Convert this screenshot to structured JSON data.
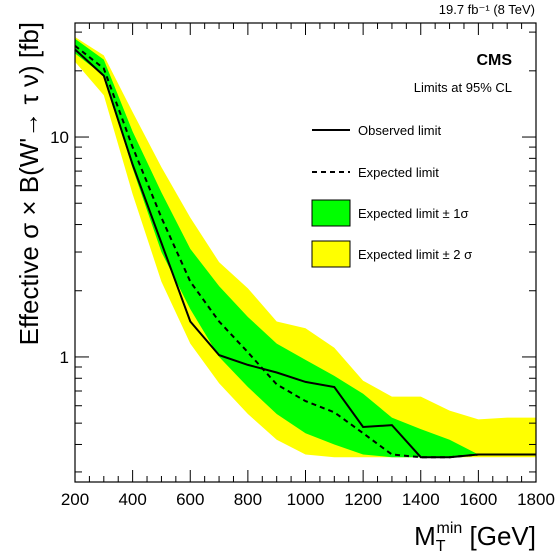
{
  "chart_data": {
    "type": "line",
    "lumi_label": "19.7 fb⁻¹ (8 TeV)",
    "experiment": "CMS",
    "cl_label": "Limits at 95% CL",
    "ylabel": "Effective σ × B(W'→ τ ν) [fb]",
    "xlabel_main": "M",
    "xlabel_sub": "T",
    "xlabel_sup": "min",
    "xlabel_unit": " [GeV]",
    "xlim": [
      200,
      1800
    ],
    "ylim": [
      0.27,
      33
    ],
    "yscale": "log",
    "x_ticks": [
      200,
      400,
      600,
      800,
      1000,
      1200,
      1400,
      1600,
      1800
    ],
    "x_tick_labels": [
      "200",
      "400",
      "600",
      "800",
      "1000",
      "1200",
      "1400",
      "1600",
      "1800"
    ],
    "y_ticks": [
      1,
      10
    ],
    "y_tick_labels": [
      "1",
      "10"
    ],
    "x": [
      200,
      300,
      400,
      500,
      600,
      700,
      800,
      900,
      1000,
      1100,
      1200,
      1300,
      1400,
      1500,
      1600,
      1700,
      1800
    ],
    "series": [
      {
        "name": "Observed limit",
        "style": "solid",
        "values": [
          25,
          19,
          7.5,
          3.3,
          1.45,
          1.02,
          0.92,
          0.85,
          0.77,
          0.73,
          0.48,
          0.49,
          0.35,
          0.35,
          0.36,
          0.36,
          0.36
        ]
      },
      {
        "name": "Expected limit",
        "style": "dashed",
        "values": [
          26,
          20.5,
          9.0,
          4.3,
          2.2,
          1.45,
          1.05,
          0.75,
          0.63,
          0.56,
          0.45,
          0.36,
          0.35,
          0.35,
          0.36,
          0.36,
          0.36
        ]
      },
      {
        "name": "Expected limit ± 1σ",
        "style": "band",
        "color": "#00ff00",
        "lower": [
          24,
          19,
          7.2,
          3.0,
          1.65,
          1.0,
          0.73,
          0.55,
          0.45,
          0.4,
          0.36,
          0.35,
          0.35,
          0.35,
          0.36,
          0.36,
          0.36
        ],
        "upper": [
          28,
          22.5,
          10.6,
          5.6,
          3.1,
          2.1,
          1.52,
          1.15,
          0.97,
          0.82,
          0.68,
          0.53,
          0.47,
          0.42,
          0.36,
          0.36,
          0.36
        ]
      },
      {
        "name": "Expected limit ± 2σ",
        "style": "band",
        "color": "#ffff00",
        "lower": [
          22,
          15.5,
          5.5,
          2.2,
          1.15,
          0.76,
          0.55,
          0.42,
          0.36,
          0.35,
          0.35,
          0.35,
          0.35,
          0.35,
          0.35,
          0.35,
          0.35
        ],
        "upper": [
          28.5,
          23.5,
          13.0,
          7.3,
          4.3,
          2.7,
          2.05,
          1.45,
          1.35,
          1.1,
          0.78,
          0.66,
          0.66,
          0.57,
          0.52,
          0.53,
          0.53
        ]
      }
    ],
    "legend": [
      {
        "label": "Observed limit",
        "kind": "solid-line"
      },
      {
        "label": "Expected limit",
        "kind": "dashed-line"
      },
      {
        "label": "Expected limit ± 1σ",
        "kind": "box",
        "color": "#00ff00"
      },
      {
        "label": "Expected limit ± 2 σ",
        "kind": "box",
        "color": "#ffff00"
      }
    ],
    "legend_position": "top-right",
    "grid": false
  }
}
